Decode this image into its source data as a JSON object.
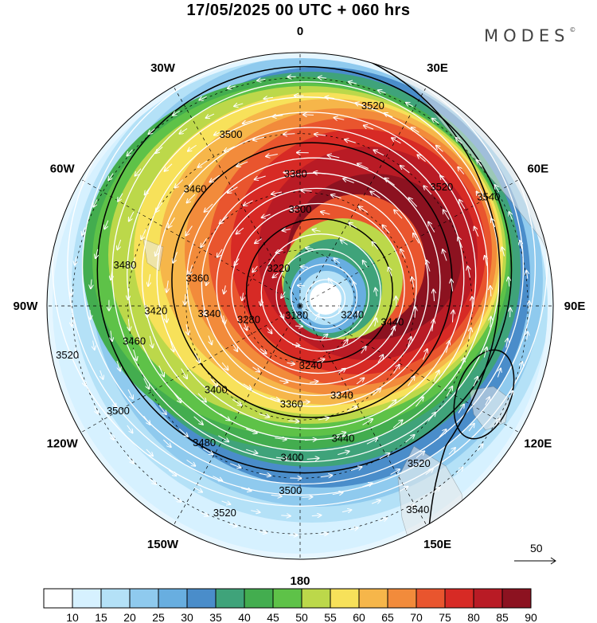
{
  "title": "17/05/2025  00 UTC  + 060 hrs",
  "brand": {
    "name": "MODES",
    "mark": "©"
  },
  "longitude_labels": [
    {
      "label": "0",
      "angle": 0
    },
    {
      "label": "30E",
      "angle": 30
    },
    {
      "label": "60E",
      "angle": 60
    },
    {
      "label": "90E",
      "angle": 90
    },
    {
      "label": "120E",
      "angle": 120
    },
    {
      "label": "150E",
      "angle": 150
    },
    {
      "label": "180",
      "angle": 180
    },
    {
      "label": "150W",
      "angle": 210
    },
    {
      "label": "120W",
      "angle": 240
    },
    {
      "label": "90W",
      "angle": 270
    },
    {
      "label": "60W",
      "angle": 300
    },
    {
      "label": "30W",
      "angle": 330
    }
  ],
  "contour_labels": [
    "3520",
    "3500",
    "3460",
    "3380",
    "3300",
    "3220",
    "3180",
    "3240",
    "3280",
    "3340",
    "3360",
    "3400",
    "3420",
    "3440",
    "3480",
    "3540",
    "3440",
    "3400",
    "3360",
    "3340",
    "3480"
  ],
  "contour_label_sample": [
    {
      "text": "3520",
      "lon": 20,
      "r": 0.84
    },
    {
      "text": "3500",
      "lon": 338,
      "r": 0.73
    },
    {
      "text": "3460",
      "lon": 318,
      "r": 0.62
    },
    {
      "text": "3380",
      "lon": 358,
      "r": 0.52
    },
    {
      "text": "3300",
      "lon": 0,
      "r": 0.38
    },
    {
      "text": "3220",
      "lon": 330,
      "r": 0.17
    },
    {
      "text": "3180",
      "lon": 200,
      "r": 0.04
    },
    {
      "text": "3240",
      "lon": 170,
      "r": 0.24
    },
    {
      "text": "3280",
      "lon": 255,
      "r": 0.21
    },
    {
      "text": "3340",
      "lon": 265,
      "r": 0.36
    },
    {
      "text": "3360",
      "lon": 285,
      "r": 0.42
    },
    {
      "text": "3420",
      "lon": 268,
      "r": 0.57
    },
    {
      "text": "3480",
      "lon": 283,
      "r": 0.71
    },
    {
      "text": "3520",
      "lon": 258,
      "r": 0.94
    },
    {
      "text": "3500",
      "lon": 240,
      "r": 0.83
    },
    {
      "text": "3460",
      "lon": 258,
      "r": 0.67
    },
    {
      "text": "3400",
      "lon": 225,
      "r": 0.47
    },
    {
      "text": "3360",
      "lon": 185,
      "r": 0.39
    },
    {
      "text": "3340",
      "lon": 155,
      "r": 0.39
    },
    {
      "text": "3440",
      "lon": 162,
      "r": 0.55
    },
    {
      "text": "3400",
      "lon": 183,
      "r": 0.6
    },
    {
      "text": "3480",
      "lon": 215,
      "r": 0.66
    },
    {
      "text": "3500",
      "lon": 183,
      "r": 0.73
    },
    {
      "text": "3520",
      "lon": 200,
      "r": 0.87
    },
    {
      "text": "3520",
      "lon": 143,
      "r": 0.78
    },
    {
      "text": "3540",
      "lon": 150,
      "r": 0.93
    },
    {
      "text": "3540",
      "lon": 60,
      "r": 0.86
    },
    {
      "text": "3520",
      "lon": 50,
      "r": 0.73
    },
    {
      "text": "3440",
      "lon": 100,
      "r": 0.37
    },
    {
      "text": "3240",
      "lon": 100,
      "r": 0.21
    }
  ],
  "colorbar": {
    "ticks": [
      "10",
      "15",
      "20",
      "25",
      "30",
      "35",
      "40",
      "45",
      "50",
      "55",
      "60",
      "65",
      "70",
      "75",
      "80",
      "85",
      "90"
    ],
    "colors": [
      "#ffffff",
      "#d6f1ff",
      "#b4e1f7",
      "#8fcaee",
      "#68aee0",
      "#4a8dca",
      "#3fa37a",
      "#43ad4f",
      "#5ec248",
      "#bcd84a",
      "#f7e15a",
      "#f6b64a",
      "#f28b3b",
      "#e9552e",
      "#d72a25",
      "#b91b25",
      "#8c1220"
    ]
  },
  "reference_vector": {
    "label": "50"
  }
}
